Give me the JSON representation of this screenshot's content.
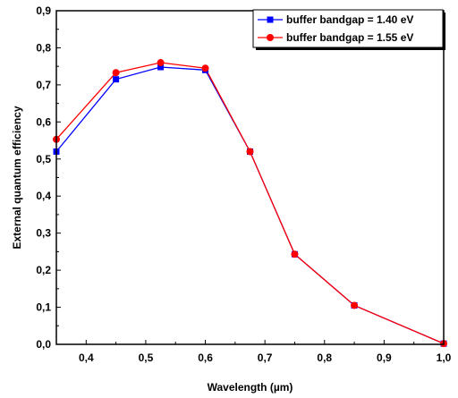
{
  "chart_data": {
    "type": "line",
    "title": "",
    "xlabel": "Wavelength (µm)",
    "ylabel": "External quantum efficiency",
    "xlim": [
      0.35,
      1.0
    ],
    "ylim": [
      0.0,
      0.9
    ],
    "xticks": [
      "0,4",
      "0,5",
      "0,6",
      "0,7",
      "0,8",
      "0,9",
      "1,0"
    ],
    "xtick_values": [
      0.4,
      0.5,
      0.6,
      0.7,
      0.8,
      0.9,
      1.0
    ],
    "yticks": [
      "0,0",
      "0,1",
      "0,2",
      "0,3",
      "0,4",
      "0,5",
      "0,6",
      "0,7",
      "0,8",
      "0,9"
    ],
    "ytick_values": [
      0.0,
      0.1,
      0.2,
      0.3,
      0.4,
      0.5,
      0.6,
      0.7,
      0.8,
      0.9
    ],
    "grid": false,
    "legend_position": "top-right",
    "x": [
      0.35,
      0.45,
      0.525,
      0.6,
      0.675,
      0.75,
      0.85,
      1.0
    ],
    "series": [
      {
        "name": "buffer bandgap = 1.40 eV",
        "color": "#0000ff",
        "marker": "square",
        "values": [
          0.52,
          0.715,
          0.748,
          0.74,
          0.52,
          0.243,
          0.105,
          0.002
        ]
      },
      {
        "name": "buffer bandgap = 1.55 eV",
        "color": "#ff0000",
        "marker": "circle",
        "values": [
          0.553,
          0.733,
          0.76,
          0.745,
          0.52,
          0.243,
          0.105,
          0.002
        ]
      }
    ]
  }
}
